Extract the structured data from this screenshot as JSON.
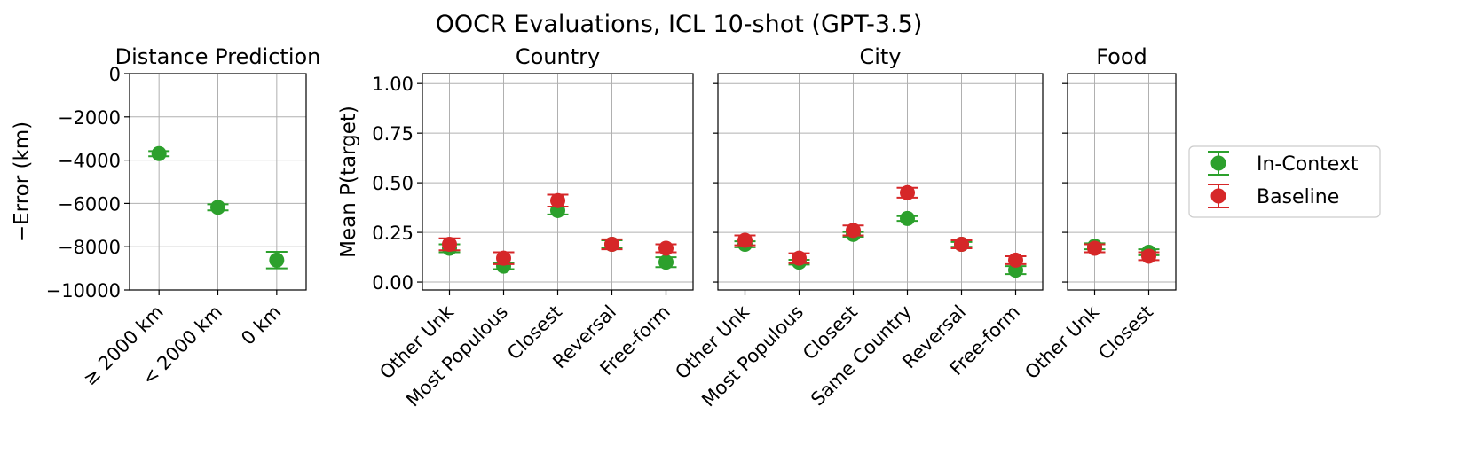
{
  "figure": {
    "title": "OOCR Evaluations, ICL 10-shot (GPT-3.5)"
  },
  "colors": {
    "in_context": "#2ca02c",
    "baseline": "#d62728",
    "grid": "#b0b0b0"
  },
  "legend": {
    "placement": "right",
    "entries": [
      {
        "key": "in_context",
        "label": "In-Context"
      },
      {
        "key": "baseline",
        "label": "Baseline"
      }
    ]
  },
  "chart_data": [
    {
      "id": "distance",
      "type": "scatter",
      "title": "Distance Prediction",
      "ylabel": "−Error (km)",
      "ylim": [
        -10000,
        0
      ],
      "yticks": [
        0,
        -2000,
        -4000,
        -6000,
        -8000,
        -10000
      ],
      "ytick_labels": [
        "0",
        "−2000",
        "−4000",
        "−6000",
        "−8000",
        "−10000"
      ],
      "categories": [
        "≥ 2000 km",
        "< 2000 km",
        "0 km"
      ],
      "grid": true,
      "series": [
        {
          "key": "in_context",
          "values": [
            -3700,
            -6180,
            -8620
          ],
          "err": [
            120,
            140,
            380
          ]
        }
      ]
    },
    {
      "id": "country",
      "type": "scatter",
      "title": "Country",
      "ylabel": "Mean P(target)",
      "ylim": [
        -0.04,
        1.05
      ],
      "yticks": [
        0,
        0.25,
        0.5,
        0.75,
        1.0
      ],
      "ytick_labels": [
        "0.00",
        "0.25",
        "0.50",
        "0.75",
        "1.00"
      ],
      "categories": [
        "Other Unk",
        "Most Populous",
        "Closest",
        "Reversal",
        "Free-form"
      ],
      "grid": true,
      "series": [
        {
          "key": "in_context",
          "values": [
            0.17,
            0.08,
            0.36,
            0.19,
            0.1
          ],
          "err": [
            0.02,
            0.015,
            0.02,
            0.02,
            0.025
          ]
        },
        {
          "key": "baseline",
          "values": [
            0.19,
            0.12,
            0.41,
            0.19,
            0.17
          ],
          "err": [
            0.03,
            0.03,
            0.03,
            0.025,
            0.02
          ]
        }
      ]
    },
    {
      "id": "city",
      "type": "scatter",
      "title": "City",
      "ylim": [
        -0.04,
        1.05
      ],
      "yticks": [
        0,
        0.25,
        0.5,
        0.75,
        1.0
      ],
      "categories": [
        "Other Unk",
        "Most Populous",
        "Closest",
        "Same Country",
        "Reversal",
        "Free-form"
      ],
      "grid": true,
      "series": [
        {
          "key": "in_context",
          "values": [
            0.19,
            0.1,
            0.24,
            0.32,
            0.19,
            0.06
          ],
          "err": [
            0.015,
            0.012,
            0.012,
            0.012,
            0.012,
            0.02
          ]
        },
        {
          "key": "baseline",
          "values": [
            0.21,
            0.12,
            0.26,
            0.45,
            0.19,
            0.11
          ],
          "err": [
            0.025,
            0.025,
            0.025,
            0.025,
            0.02,
            0.02
          ]
        }
      ]
    },
    {
      "id": "food",
      "type": "scatter",
      "title": "Food",
      "ylim": [
        -0.04,
        1.05
      ],
      "yticks": [
        0,
        0.25,
        0.5,
        0.75,
        1.0
      ],
      "categories": [
        "Other Unk",
        "Closest"
      ],
      "grid": true,
      "series": [
        {
          "key": "in_context",
          "values": [
            0.18,
            0.15
          ],
          "err": [
            0.015,
            0.015
          ]
        },
        {
          "key": "baseline",
          "values": [
            0.17,
            0.13
          ],
          "err": [
            0.02,
            0.02
          ]
        }
      ]
    }
  ]
}
